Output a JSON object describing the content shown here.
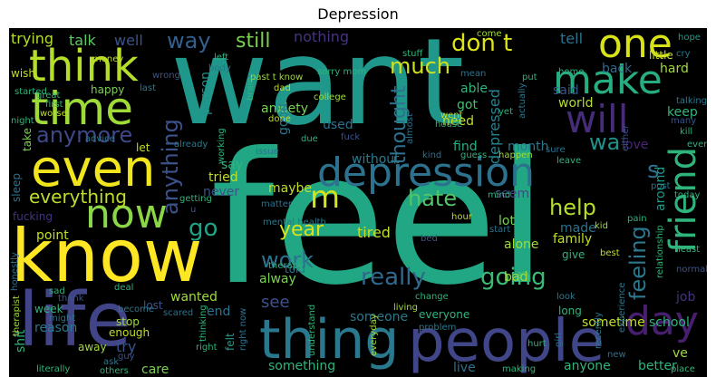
{
  "title": "Depression",
  "colors": {
    "background": "#000000",
    "page": "#ffffff"
  },
  "words": [
    {
      "id": "feel",
      "text": "feel",
      "color": "#22a784"
    },
    {
      "id": "want",
      "text": "want",
      "color": "#1f988b"
    },
    {
      "id": "know",
      "text": "know",
      "color": "#fde725"
    },
    {
      "id": "life",
      "text": "life",
      "color": "#414487"
    },
    {
      "id": "thing",
      "text": "thing",
      "color": "#2a788e"
    },
    {
      "id": "people",
      "text": "people",
      "color": "#404688"
    },
    {
      "id": "think",
      "text": "think",
      "color": "#b5de2b"
    },
    {
      "id": "time",
      "text": "time",
      "color": "#a0da39"
    },
    {
      "id": "even",
      "text": "even",
      "color": "#f1e51d"
    },
    {
      "id": "now",
      "text": "now",
      "color": "#8bd646"
    },
    {
      "id": "one",
      "text": "one",
      "color": "#d8e219"
    },
    {
      "id": "make",
      "text": "make",
      "color": "#26ad81"
    },
    {
      "id": "will",
      "text": "will",
      "color": "#472c7a"
    },
    {
      "id": "friend",
      "text": "friend",
      "color": "#2fb47c"
    },
    {
      "id": "day",
      "text": "day",
      "color": "#481f70"
    },
    {
      "id": "depression",
      "text": "depression",
      "color": "#2c728e"
    },
    {
      "id": "m",
      "text": "m",
      "color": "#d2e21b"
    },
    {
      "id": "anymore",
      "text": "anymore",
      "color": "#3e4989"
    },
    {
      "id": "anything",
      "text": "anything",
      "color": "#3b528b"
    },
    {
      "id": "everything",
      "text": "everything",
      "color": "#bddf26"
    },
    {
      "id": "way",
      "text": "way",
      "color": "#355f8d"
    },
    {
      "id": "still",
      "text": "still",
      "color": "#7ad151"
    },
    {
      "id": "much",
      "text": "much",
      "color": "#d0e11c"
    },
    {
      "id": "dont",
      "text": "don t",
      "color": "#dce319"
    },
    {
      "id": "really",
      "text": "really",
      "color": "#31688e"
    },
    {
      "id": "going",
      "text": "going",
      "color": "#3bbb75"
    },
    {
      "id": "work",
      "text": "work",
      "color": "#2c728e"
    },
    {
      "id": "feeling",
      "text": "feeling",
      "color": "#2a788e"
    },
    {
      "id": "go",
      "text": "go",
      "color": "#20a386"
    },
    {
      "id": "year",
      "text": "year",
      "color": "#d8e219"
    },
    {
      "id": "hate",
      "text": "hate",
      "color": "#52c569"
    },
    {
      "id": "help",
      "text": "help",
      "color": "#b5de2b"
    },
    {
      "id": "thought",
      "text": "thought",
      "color": "#2c728e"
    },
    {
      "id": "without",
      "text": "without",
      "color": "#2a788e"
    },
    {
      "id": "wa",
      "text": "wa",
      "color": "#21918c"
    },
    {
      "id": "s",
      "text": "s",
      "color": "#2e6e8e"
    },
    {
      "id": "talk",
      "text": "talk",
      "color": "#5ec962"
    },
    {
      "id": "well",
      "text": "well",
      "color": "#3b528b"
    },
    {
      "id": "trying",
      "text": "trying",
      "color": "#b5de2b"
    },
    {
      "id": "nothing",
      "text": "nothing",
      "color": "#46337e"
    },
    {
      "id": "tell",
      "text": "tell",
      "color": "#2c728e"
    },
    {
      "id": "hope",
      "text": "hope",
      "color": "#1f9e89"
    },
    {
      "id": "cry",
      "text": "cry",
      "color": "#2a788e"
    },
    {
      "id": "hard",
      "text": "hard",
      "color": "#a0da39"
    },
    {
      "id": "keep",
      "text": "keep",
      "color": "#2fb47c"
    },
    {
      "id": "back",
      "text": "back",
      "color": "#31688e"
    },
    {
      "id": "said",
      "text": "said",
      "color": "#39568c"
    },
    {
      "id": "world",
      "text": "world",
      "color": "#b5de2b"
    },
    {
      "id": "able",
      "text": "able",
      "color": "#2fb47c"
    },
    {
      "id": "depressed",
      "text": "depressed",
      "color": "#26828e"
    },
    {
      "id": "got",
      "text": "got",
      "color": "#44bf70"
    },
    {
      "id": "need",
      "text": "need",
      "color": "#c2df23"
    },
    {
      "id": "find",
      "text": "find",
      "color": "#29af7f"
    },
    {
      "id": "love",
      "text": "love",
      "color": "#482475"
    },
    {
      "id": "month",
      "text": "month",
      "color": "#2a788e"
    },
    {
      "id": "around",
      "text": "around",
      "color": "#1f9a8a"
    },
    {
      "id": "anxiety",
      "text": "anxiety",
      "color": "#7ad151"
    },
    {
      "id": "person",
      "text": "person",
      "color": "#21918c"
    },
    {
      "id": "good",
      "text": "good",
      "color": "#2a788e"
    },
    {
      "id": "used",
      "text": "used",
      "color": "#2c728e"
    },
    {
      "id": "maybe",
      "text": "maybe",
      "color": "#c2df23"
    },
    {
      "id": "tried",
      "text": "tried",
      "color": "#c2df23"
    },
    {
      "id": "never",
      "text": "never",
      "color": "#3b528b"
    },
    {
      "id": "say",
      "text": "say",
      "color": "#2fb47c"
    },
    {
      "id": "seem",
      "text": "seem",
      "color": "#3e4989"
    },
    {
      "id": "lot",
      "text": "lot",
      "color": "#7ad151"
    },
    {
      "id": "tired",
      "text": "tired",
      "color": "#c2df23"
    },
    {
      "id": "alone",
      "text": "alone",
      "color": "#a0da39"
    },
    {
      "id": "family",
      "text": "family",
      "color": "#c2df23"
    },
    {
      "id": "made",
      "text": "made",
      "color": "#2c728e"
    },
    {
      "id": "give",
      "text": "give",
      "color": "#2fb47c"
    },
    {
      "id": "bad",
      "text": "bad",
      "color": "#a0da39"
    },
    {
      "id": "alway",
      "text": "alway",
      "color": "#7ad151"
    },
    {
      "id": "told",
      "text": "told",
      "color": "#2c728e"
    },
    {
      "id": "see",
      "text": "see",
      "color": "#3b528b"
    },
    {
      "id": "someone",
      "text": "someone",
      "color": "#2a788e"
    },
    {
      "id": "everyone",
      "text": "everyone",
      "color": "#2fb47c"
    },
    {
      "id": "point",
      "text": "point",
      "color": "#c2df23"
    },
    {
      "id": "wanted",
      "text": "wanted",
      "color": "#a0da39"
    },
    {
      "id": "end",
      "text": "end",
      "color": "#2c728e"
    },
    {
      "id": "job",
      "text": "job",
      "color": "#46337e"
    },
    {
      "id": "school",
      "text": "school",
      "color": "#2fb47c"
    },
    {
      "id": "sometime",
      "text": "sometime",
      "color": "#c2df23"
    },
    {
      "id": "better",
      "text": "better",
      "color": "#2fb47c"
    },
    {
      "id": "ve",
      "text": "ve",
      "color": "#a0da39"
    },
    {
      "id": "anyone",
      "text": "anyone",
      "color": "#2fb47c"
    },
    {
      "id": "live",
      "text": "live",
      "color": "#2c728e"
    },
    {
      "id": "something",
      "text": "something",
      "color": "#2fb47c"
    },
    {
      "id": "care",
      "text": "care",
      "color": "#7ad151"
    },
    {
      "id": "try",
      "text": "try",
      "color": "#3b528b"
    },
    {
      "id": "reason",
      "text": "reason",
      "color": "#2a788e"
    },
    {
      "id": "week",
      "text": "week",
      "color": "#2fb47c"
    },
    {
      "id": "felt",
      "text": "felt",
      "color": "#1f9e89"
    },
    {
      "id": "happy",
      "text": "happy",
      "color": "#7ad151"
    },
    {
      "id": "fucking",
      "text": "fucking",
      "color": "#46337e"
    },
    {
      "id": "sleep",
      "text": "sleep",
      "color": "#2c728e"
    },
    {
      "id": "take",
      "text": "take",
      "color": "#7ad151"
    },
    {
      "id": "wish",
      "text": "wish",
      "color": "#c2df23"
    },
    {
      "id": "started",
      "text": "started",
      "color": "#2fb47c"
    },
    {
      "id": "money",
      "text": "money",
      "color": "#c2df23"
    },
    {
      "id": "shit",
      "text": "shit",
      "color": "#2fb47c"
    },
    {
      "id": "therapist",
      "text": "therapist",
      "color": "#a0da39"
    },
    {
      "id": "thinking",
      "text": "thinking",
      "color": "#2fb47c"
    },
    {
      "id": "scared",
      "text": "scared",
      "color": "#2c728e"
    },
    {
      "id": "lost",
      "text": "lost",
      "color": "#3b528b"
    },
    {
      "id": "stop",
      "text": "stop",
      "color": "#a0da39"
    },
    {
      "id": "enough",
      "text": "enough",
      "color": "#c2df23"
    },
    {
      "id": "right",
      "text": "right",
      "color": "#2fb47c"
    },
    {
      "id": "away",
      "text": "away",
      "color": "#a0da39"
    },
    {
      "id": "others",
      "text": "others",
      "color": "#2fb47c"
    },
    {
      "id": "right_now",
      "text": "right now",
      "color": "#2c728e"
    },
    {
      "id": "understand",
      "text": "understand",
      "color": "#2fb47c"
    },
    {
      "id": "problem",
      "text": "problem",
      "color": "#2a788e"
    },
    {
      "id": "change",
      "text": "change",
      "color": "#2fb47c"
    },
    {
      "id": "living",
      "text": "living",
      "color": "#a0da39"
    },
    {
      "id": "hurt",
      "text": "hurt",
      "color": "#2fb47c"
    },
    {
      "id": "girl",
      "text": "girl",
      "color": "#2c728e"
    },
    {
      "id": "making",
      "text": "making",
      "color": "#2fb47c"
    },
    {
      "id": "everyday",
      "text": "everyday",
      "color": "#a0da39"
    },
    {
      "id": "long",
      "text": "long",
      "color": "#2fb47c"
    },
    {
      "id": "look",
      "text": "look",
      "color": "#2a788e"
    },
    {
      "id": "place",
      "text": "place",
      "color": "#2fb47c"
    },
    {
      "id": "new",
      "text": "new",
      "color": "#2c728e"
    },
    {
      "id": "experience",
      "text": "experience",
      "color": "#2a788e"
    },
    {
      "id": "relationship",
      "text": "relationship",
      "color": "#2fb47c"
    },
    {
      "id": "normal",
      "text": "normal",
      "color": "#3b528b"
    },
    {
      "id": "least",
      "text": "least",
      "color": "#2fb47c"
    },
    {
      "id": "best",
      "text": "best",
      "color": "#c2df23"
    },
    {
      "id": "pain",
      "text": "pain",
      "color": "#2fb47c"
    },
    {
      "id": "kid",
      "text": "kid",
      "color": "#a0da39"
    },
    {
      "id": "post",
      "text": "post",
      "color": "#2c728e"
    },
    {
      "id": "today",
      "text": "today",
      "color": "#2fb47c"
    },
    {
      "id": "kill",
      "text": "kill",
      "color": "#2fb47c"
    },
    {
      "id": "many",
      "text": "many",
      "color": "#3b528b"
    },
    {
      "id": "talking",
      "text": "talking",
      "color": "#2a788e"
    },
    {
      "id": "every",
      "text": "every",
      "color": "#2fb47c"
    },
    {
      "id": "little",
      "text": "little",
      "color": "#c2df23"
    },
    {
      "id": "home",
      "text": "home",
      "color": "#2fb47c"
    },
    {
      "id": "mean",
      "text": "mean",
      "color": "#2c728e"
    },
    {
      "id": "put",
      "text": "put",
      "color": "#2fb47c"
    },
    {
      "id": "actually",
      "text": "actually",
      "color": "#2a788e"
    },
    {
      "id": "come",
      "text": "come",
      "color": "#a0da39"
    },
    {
      "id": "stuff",
      "text": "stuff",
      "color": "#2fb47c"
    },
    {
      "id": "went",
      "text": "went",
      "color": "#c2df23"
    },
    {
      "id": "house",
      "text": "house",
      "color": "#2fb47c"
    },
    {
      "id": "almost",
      "text": "almost",
      "color": "#2c728e"
    },
    {
      "id": "sorry_mom",
      "text": "sorry mom",
      "color": "#2fb47c"
    },
    {
      "id": "past_t_know",
      "text": "past t know",
      "color": "#a0da39"
    },
    {
      "id": "dad",
      "text": "dad",
      "color": "#c2df23"
    },
    {
      "id": "brain",
      "text": "brain",
      "color": "#2fb47c"
    },
    {
      "id": "college",
      "text": "college",
      "color": "#a0da39"
    },
    {
      "id": "left",
      "text": "left",
      "color": "#2fb47c"
    },
    {
      "id": "body",
      "text": "body",
      "color": "#2c728e"
    },
    {
      "id": "wrong",
      "text": "wrong",
      "color": "#3b528b"
    },
    {
      "id": "great",
      "text": "great",
      "color": "#2fb47c"
    },
    {
      "id": "last",
      "text": "last",
      "color": "#2a788e"
    },
    {
      "id": "night",
      "text": "night",
      "color": "#2fb47c"
    },
    {
      "id": "advice",
      "text": "advice",
      "color": "#2a788e"
    },
    {
      "id": "let",
      "text": "let",
      "color": "#c2df23"
    },
    {
      "id": "working",
      "text": "working",
      "color": "#2fb47c"
    },
    {
      "id": "already",
      "text": "already",
      "color": "#2a788e"
    },
    {
      "id": "done",
      "text": "done",
      "color": "#c2df23"
    },
    {
      "id": "due",
      "text": "due",
      "color": "#2fb47c"
    },
    {
      "id": "fuck",
      "text": "fuck",
      "color": "#3b528b"
    },
    {
      "id": "kind",
      "text": "kind",
      "color": "#2c728e"
    },
    {
      "id": "guess",
      "text": "guess",
      "color": "#2fb47c"
    },
    {
      "id": "happen",
      "text": "happen",
      "color": "#a0da39"
    },
    {
      "id": "leave",
      "text": "leave",
      "color": "#2fb47c"
    },
    {
      "id": "sure",
      "text": "sure",
      "color": "#2c728e"
    },
    {
      "id": "either",
      "text": "either",
      "color": "#3b528b"
    },
    {
      "id": "yet",
      "text": "yet",
      "color": "#2fb47c"
    },
    {
      "id": "getting",
      "text": "getting",
      "color": "#2fb47c"
    },
    {
      "id": "matter",
      "text": "matter",
      "color": "#2c728e"
    },
    {
      "id": "hour",
      "text": "hour",
      "color": "#c2df23"
    },
    {
      "id": "mind",
      "text": "mind",
      "color": "#2fb47c"
    },
    {
      "id": "mental_health",
      "text": "mental health",
      "color": "#2a788e"
    },
    {
      "id": "therapy",
      "text": "therapy",
      "color": "#2fb47c"
    },
    {
      "id": "start",
      "text": "start",
      "color": "#2c728e"
    },
    {
      "id": "bed",
      "text": "bed",
      "color": "#3b528b"
    },
    {
      "id": "deal",
      "text": "deal",
      "color": "#2fb47c"
    },
    {
      "id": "honestly",
      "text": "honestly",
      "color": "#2c728e"
    },
    {
      "id": "sad",
      "text": "sad",
      "color": "#2fb47c"
    },
    {
      "id": "thank",
      "text": "thank",
      "color": "#3b528b"
    },
    {
      "id": "might",
      "text": "might",
      "color": "#2c728e"
    },
    {
      "id": "become",
      "text": "become",
      "color": "#2a788e"
    },
    {
      "id": "first",
      "text": "first",
      "color": "#2fb47c"
    },
    {
      "id": "guy",
      "text": "guy",
      "color": "#3b528b"
    },
    {
      "id": "worse",
      "text": "worse",
      "color": "#c2df23"
    },
    {
      "id": "ask",
      "text": "ask",
      "color": "#2c728e"
    },
    {
      "id": "literally",
      "text": "literally",
      "color": "#2fb47c"
    },
    {
      "id": "issue",
      "text": "issue",
      "color": "#2c728e"
    },
    {
      "id": "u",
      "text": "u",
      "color": "#3b528b"
    },
    {
      "id": "recently",
      "text": "recently",
      "color": "#2a788e"
    },
    {
      "id": "talk2",
      "text": "talk",
      "color": "#2fb47c"
    }
  ]
}
